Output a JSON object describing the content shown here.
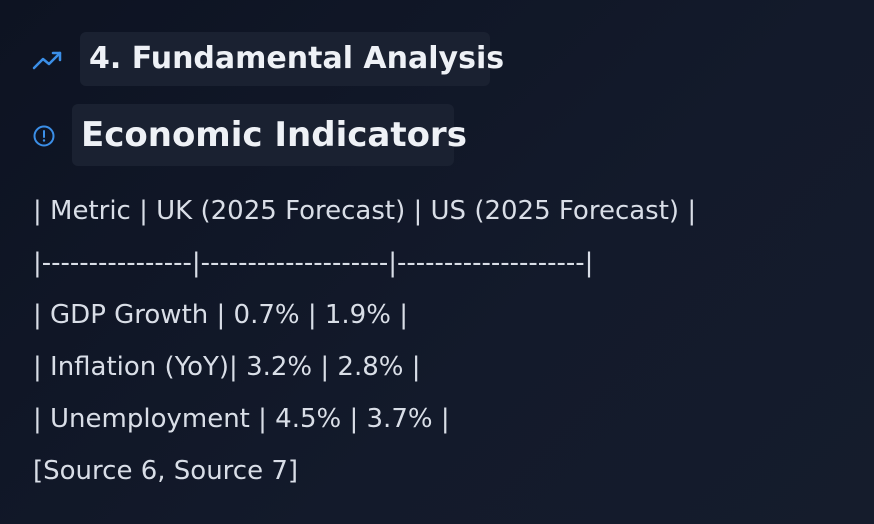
{
  "section_heading": "4. Fundamental Analysis",
  "subheading": "Economic Indicators",
  "lines": [
    "| Metric | UK (2025 Forecast) | US (2025 Forecast) |",
    "|----------------|--------------------|--------------------|",
    "| GDP Growth | 0.7% | 1.9% |",
    "| Inflation (YoY)| 3.2% | 2.8% |",
    "| Unemployment | 4.5% | 3.7% |",
    "[Source 6, Source 7]"
  ]
}
